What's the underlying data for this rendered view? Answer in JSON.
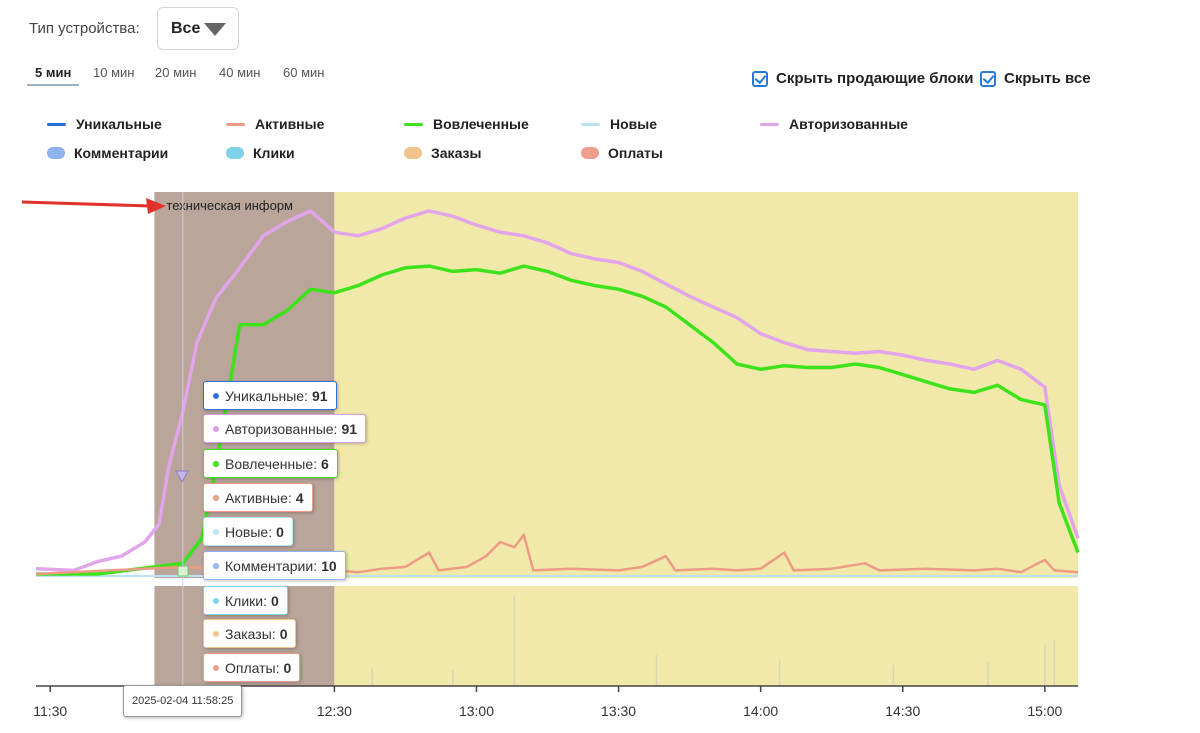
{
  "device": {
    "label": "Тип устройства:",
    "selected": "Все"
  },
  "intervals": [
    {
      "label": "5 мин",
      "active": true
    },
    {
      "label": "10 мин",
      "active": false
    },
    {
      "label": "20 мин",
      "active": false
    },
    {
      "label": "40 мин",
      "active": false
    },
    {
      "label": "60 мин",
      "active": false
    }
  ],
  "toggles": {
    "hide_selling": "Скрыть продающие блоки",
    "hide_all": "Скрыть все"
  },
  "legend": [
    {
      "name": "Уникальные",
      "color": "#2e6fd9",
      "kind": "line"
    },
    {
      "name": "Активные",
      "color": "#ee9b85",
      "kind": "line"
    },
    {
      "name": "Вовлеченные",
      "color": "#3de21a",
      "kind": "line"
    },
    {
      "name": "Новые",
      "color": "#b9e3f3",
      "kind": "line"
    },
    {
      "name": "Авторизованные",
      "color": "#e2a4ea",
      "kind": "line"
    },
    {
      "name": "Комментарии",
      "color": "#8fb4ee",
      "kind": "bar"
    },
    {
      "name": "Клики",
      "color": "#7fd2ea",
      "kind": "bar"
    },
    {
      "name": "Заказы",
      "color": "#f1c48c",
      "kind": "bar"
    },
    {
      "name": "Оплаты",
      "color": "#ed9f8c",
      "kind": "bar"
    }
  ],
  "colors": {
    "tech_band": "#b9a59a",
    "main_band": "#f1e9aa",
    "arrow": "#e0322a"
  },
  "chart_data": {
    "type": "line",
    "x_axis": {
      "min": "11:27",
      "max": "15:07",
      "ticks": [
        "11:30",
        "12:30",
        "13:00",
        "13:30",
        "14:00",
        "14:30",
        "15:00"
      ]
    },
    "shaded_regions": [
      {
        "from": "11:52",
        "to": "12:30",
        "label": "техническая информ"
      },
      {
        "from": "12:30",
        "to": "15:07",
        "label": ""
      }
    ],
    "series": [
      {
        "name": "Авторизованные",
        "color": "#e2a4ea",
        "points": [
          [
            "11:27",
            3
          ],
          [
            "11:35",
            2
          ],
          [
            "11:40",
            7
          ],
          [
            "11:45",
            10
          ],
          [
            "11:50",
            18
          ],
          [
            "11:53",
            28
          ],
          [
            "11:55",
            60
          ],
          [
            "11:58",
            91
          ],
          [
            "12:01",
            130
          ],
          [
            "12:05",
            155
          ],
          [
            "12:10",
            172
          ],
          [
            "12:15",
            190
          ],
          [
            "12:20",
            198
          ],
          [
            "12:25",
            204
          ],
          [
            "12:30",
            192
          ],
          [
            "12:35",
            190
          ],
          [
            "12:40",
            194
          ],
          [
            "12:45",
            200
          ],
          [
            "12:50",
            204
          ],
          [
            "12:55",
            201
          ],
          [
            "13:00",
            196
          ],
          [
            "13:05",
            192
          ],
          [
            "13:10",
            190
          ],
          [
            "13:15",
            186
          ],
          [
            "13:20",
            180
          ],
          [
            "13:25",
            177
          ],
          [
            "13:30",
            175
          ],
          [
            "13:35",
            170
          ],
          [
            "13:40",
            163
          ],
          [
            "13:45",
            156
          ],
          [
            "13:50",
            150
          ],
          [
            "13:55",
            144
          ],
          [
            "14:00",
            135
          ],
          [
            "14:05",
            130
          ],
          [
            "14:10",
            126
          ],
          [
            "14:15",
            125
          ],
          [
            "14:20",
            124
          ],
          [
            "14:25",
            125
          ],
          [
            "14:30",
            123
          ],
          [
            "14:35",
            120
          ],
          [
            "14:40",
            118
          ],
          [
            "14:45",
            115
          ],
          [
            "14:50",
            120
          ],
          [
            "14:55",
            115
          ],
          [
            "15:00",
            105
          ],
          [
            "15:03",
            50
          ],
          [
            "15:07",
            20
          ]
        ]
      },
      {
        "name": "Вовлеченные",
        "color": "#3de21a",
        "points": [
          [
            "11:27",
            0
          ],
          [
            "11:40",
            0
          ],
          [
            "11:58",
            6
          ],
          [
            "12:02",
            20
          ],
          [
            "12:05",
            60
          ],
          [
            "12:10",
            140
          ],
          [
            "12:15",
            140
          ],
          [
            "12:20",
            148
          ],
          [
            "12:25",
            160
          ],
          [
            "12:30",
            158
          ],
          [
            "12:35",
            162
          ],
          [
            "12:40",
            168
          ],
          [
            "12:45",
            172
          ],
          [
            "12:50",
            173
          ],
          [
            "12:55",
            170
          ],
          [
            "13:00",
            171
          ],
          [
            "13:05",
            169
          ],
          [
            "13:10",
            173
          ],
          [
            "13:15",
            170
          ],
          [
            "13:20",
            165
          ],
          [
            "13:25",
            162
          ],
          [
            "13:30",
            160
          ],
          [
            "13:35",
            156
          ],
          [
            "13:40",
            150
          ],
          [
            "13:45",
            140
          ],
          [
            "13:50",
            130
          ],
          [
            "13:55",
            118
          ],
          [
            "14:00",
            115
          ],
          [
            "14:05",
            117
          ],
          [
            "14:10",
            116
          ],
          [
            "14:15",
            116
          ],
          [
            "14:20",
            118
          ],
          [
            "14:25",
            116
          ],
          [
            "14:30",
            112
          ],
          [
            "14:35",
            108
          ],
          [
            "14:40",
            104
          ],
          [
            "14:45",
            102
          ],
          [
            "14:50",
            106
          ],
          [
            "14:55",
            98
          ],
          [
            "15:00",
            95
          ],
          [
            "15:03",
            40
          ],
          [
            "15:07",
            12
          ]
        ]
      },
      {
        "name": "Активные",
        "color": "#ee9b85",
        "points": [
          [
            "11:27",
            0
          ],
          [
            "11:58",
            4
          ],
          [
            "12:10",
            2
          ],
          [
            "12:30",
            2
          ],
          [
            "12:35",
            1
          ],
          [
            "12:40",
            3
          ],
          [
            "12:45",
            4
          ],
          [
            "12:50",
            12
          ],
          [
            "12:52",
            2
          ],
          [
            "12:58",
            4
          ],
          [
            "13:02",
            10
          ],
          [
            "13:05",
            18
          ],
          [
            "13:08",
            15
          ],
          [
            "13:10",
            22
          ],
          [
            "13:12",
            2
          ],
          [
            "13:20",
            3
          ],
          [
            "13:30",
            2
          ],
          [
            "13:35",
            4
          ],
          [
            "13:40",
            10
          ],
          [
            "13:42",
            2
          ],
          [
            "13:50",
            3
          ],
          [
            "13:55",
            2
          ],
          [
            "14:00",
            3
          ],
          [
            "14:05",
            12
          ],
          [
            "14:07",
            2
          ],
          [
            "14:15",
            3
          ],
          [
            "14:22",
            6
          ],
          [
            "14:25",
            2
          ],
          [
            "14:35",
            3
          ],
          [
            "14:45",
            2
          ],
          [
            "14:50",
            3
          ],
          [
            "14:55",
            1
          ],
          [
            "15:00",
            8
          ],
          [
            "15:02",
            2
          ],
          [
            "15:07",
            1
          ]
        ]
      },
      {
        "name": "Уникальные",
        "color": "#2e6fd9",
        "points": []
      },
      {
        "name": "Новые",
        "color": "#b9e3f3",
        "points": []
      }
    ],
    "tooltip": {
      "time": "2025-02-04 11:58:25",
      "items": [
        {
          "name": "Уникальные",
          "value": "91",
          "color": "#2e6fd9"
        },
        {
          "name": "Авторизованные",
          "value": "91",
          "color": "#d99be4"
        },
        {
          "name": "Вовлеченные",
          "value": "6",
          "color": "#3de21a"
        },
        {
          "name": "Активные",
          "value": "4",
          "color": "#ee9b85"
        },
        {
          "name": "Новые",
          "value": "0",
          "color": "#b9e3f3"
        },
        {
          "name": "Комментарии",
          "value": "10",
          "color": "#8fb4ee"
        },
        {
          "name": "Клики",
          "value": "0",
          "color": "#7fd2ea"
        },
        {
          "name": "Заказы",
          "value": "0",
          "color": "#f1c48c"
        },
        {
          "name": "Оплаты",
          "value": "0",
          "color": "#ed9f8c"
        }
      ]
    }
  }
}
